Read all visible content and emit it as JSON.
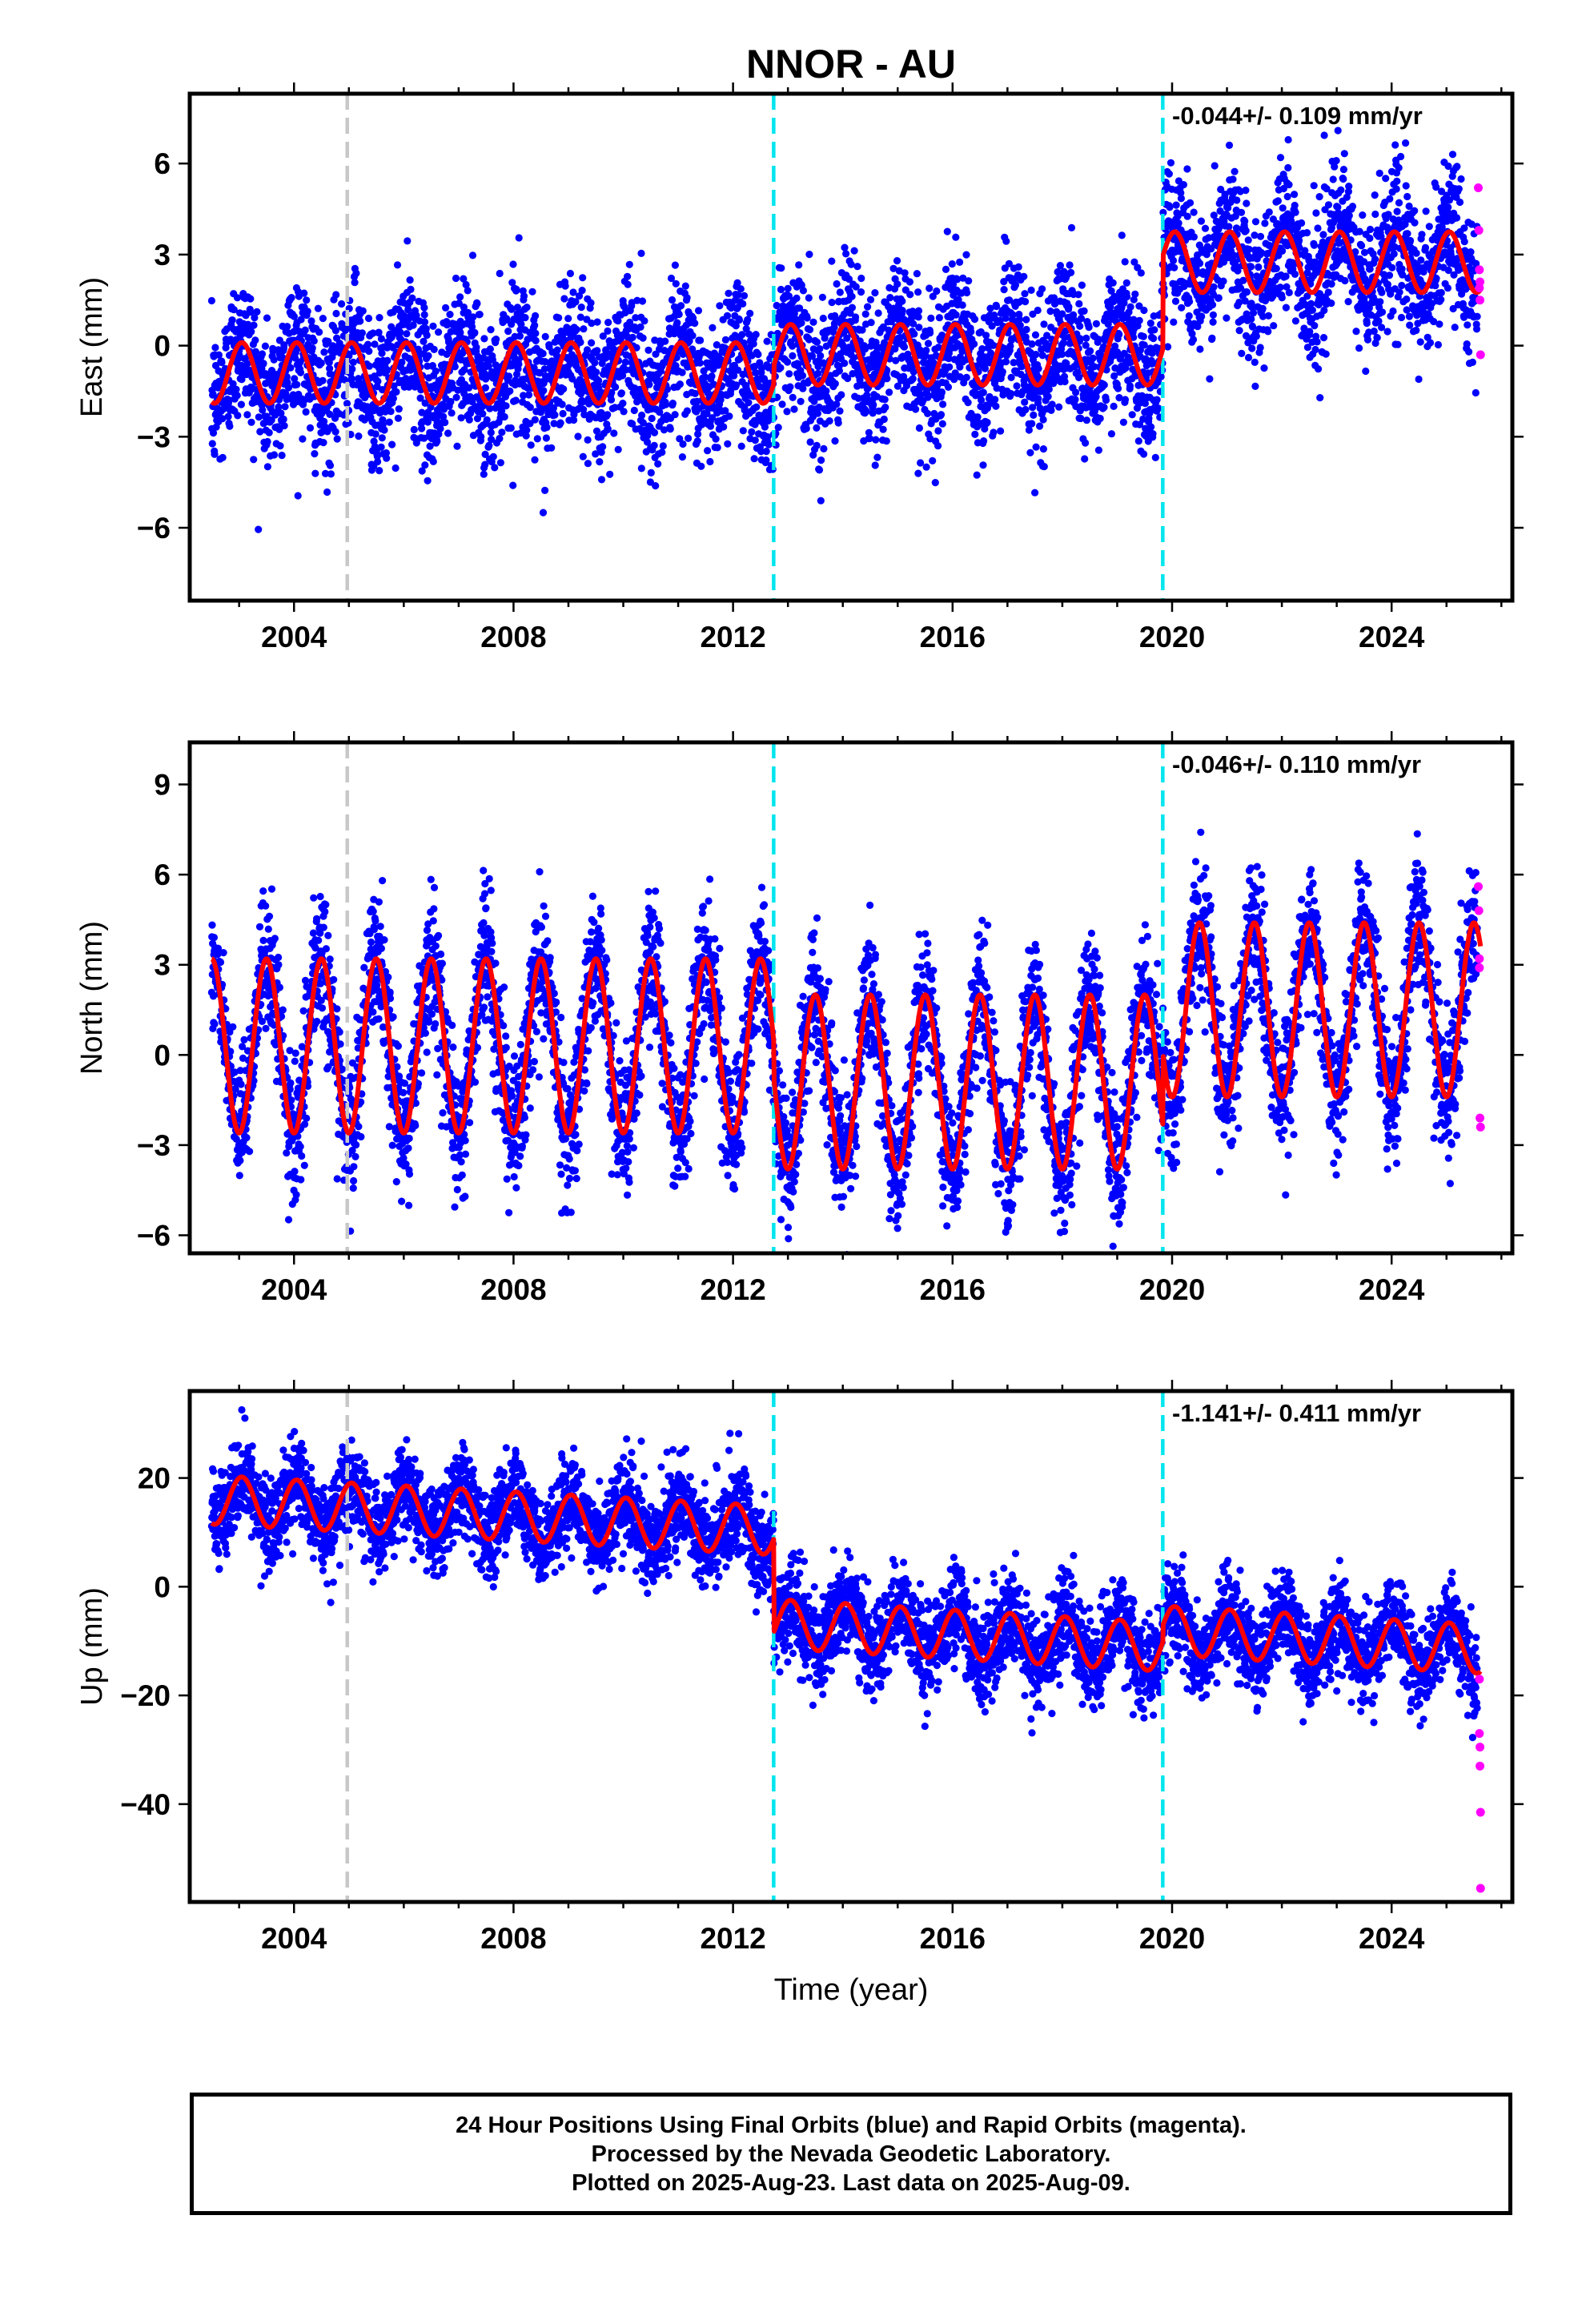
{
  "title": "NNOR - AU",
  "footer": {
    "line1": "24 Hour Positions Using Final Orbits (blue) and Rapid Orbits (magenta).",
    "line2": "Processed by the Nevada Geodetic Laboratory.",
    "line3": "Plotted on 2025-Aug-23. Last data on 2025-Aug-09."
  },
  "colors": {
    "final_orbits": "#0000ff",
    "rapid_orbits": "#ff00ff",
    "model": "#ff0000",
    "equipment_change": "#00e5ee",
    "other_event": "#c8c8c8"
  },
  "chart_data": [
    {
      "type": "scatter",
      "panel": "east",
      "ylabel": "East (mm)",
      "xlabel": "",
      "xlim": [
        2002.1,
        2026.2
      ],
      "ylim": [
        -8.4,
        8.3
      ],
      "x_ticks": [
        2004,
        2008,
        2012,
        2016,
        2020,
        2024
      ],
      "y_ticks": [
        -6,
        -3,
        0,
        3,
        6
      ],
      "y_tick_labels": [
        "−6",
        "−3",
        "0",
        "3",
        "6"
      ],
      "velocity_label": "-0.044+/- 0.109 mm/yr",
      "offsets": [
        {
          "year": 2004.97,
          "style": "gray-dashed"
        },
        {
          "year": 2012.74,
          "style": "cyan-dashed"
        },
        {
          "year": 2019.83,
          "style": "cyan-dashed"
        }
      ],
      "model": {
        "segments": [
          {
            "start": 2002.5,
            "end": 2012.74,
            "base": -0.9
          },
          {
            "start": 2012.74,
            "end": 2019.83,
            "base": -0.3
          },
          {
            "start": 2019.83,
            "end": 2025.62,
            "base": 2.75
          }
        ],
        "annual_amplitude": 1.0,
        "annual_peak_phase": 0.05
      },
      "final_orbits": {
        "noise_sd": 1.2
      },
      "rapid_orbits": [
        {
          "x": 2025.58,
          "y": 5.2
        },
        {
          "x": 2025.59,
          "y": 3.8
        },
        {
          "x": 2025.6,
          "y": 2.5
        },
        {
          "x": 2025.6,
          "y": 1.9
        },
        {
          "x": 2025.61,
          "y": 1.5
        },
        {
          "x": 2025.61,
          "y": 2.1
        },
        {
          "x": 2025.62,
          "y": -0.3
        }
      ]
    },
    {
      "type": "scatter",
      "panel": "north",
      "ylabel": "North (mm)",
      "xlabel": "",
      "xlim": [
        2002.1,
        2026.2
      ],
      "ylim": [
        -6.6,
        10.4
      ],
      "x_ticks": [
        2004,
        2008,
        2012,
        2016,
        2020,
        2024
      ],
      "y_ticks": [
        -6,
        -3,
        0,
        3,
        6,
        9
      ],
      "y_tick_labels": [
        "−6",
        "−3",
        "0",
        "3",
        "6",
        "9"
      ],
      "velocity_label": "-0.046+/- 0.110 mm/yr",
      "offsets": [
        {
          "year": 2004.97,
          "style": "gray-dashed"
        },
        {
          "year": 2012.74,
          "style": "cyan-dashed"
        },
        {
          "year": 2019.83,
          "style": "cyan-dashed"
        }
      ],
      "model": {
        "segments": [
          {
            "start": 2002.5,
            "end": 2012.74,
            "base": 0.3
          },
          {
            "start": 2012.74,
            "end": 2019.83,
            "base": -0.9
          },
          {
            "start": 2019.83,
            "end": 2025.62,
            "base": 1.5
          }
        ],
        "annual_amplitude": 2.9,
        "annual_peak_phase": 0.5
      },
      "final_orbits": {
        "noise_sd": 1.1
      },
      "rapid_orbits": [
        {
          "x": 2025.58,
          "y": 5.6
        },
        {
          "x": 2025.59,
          "y": 4.8
        },
        {
          "x": 2025.6,
          "y": 3.2
        },
        {
          "x": 2025.6,
          "y": 2.9
        },
        {
          "x": 2025.61,
          "y": -2.1
        },
        {
          "x": 2025.62,
          "y": -2.4
        }
      ]
    },
    {
      "type": "scatter",
      "panel": "up",
      "ylabel": "Up (mm)",
      "xlabel": "Time (year)",
      "xlim": [
        2002.1,
        2026.2
      ],
      "ylim": [
        -58,
        36
      ],
      "x_ticks": [
        2004,
        2008,
        2012,
        2016,
        2020,
        2024
      ],
      "y_ticks": [
        -40,
        -20,
        0,
        20
      ],
      "y_tick_labels": [
        "−40",
        "−20",
        "0",
        "20"
      ],
      "velocity_label": "-1.141+/- 0.411 mm/yr",
      "offsets": [
        {
          "year": 2004.97,
          "style": "gray-dashed"
        },
        {
          "year": 2012.74,
          "style": "cyan-dashed"
        },
        {
          "year": 2019.83,
          "style": "cyan-dashed"
        }
      ],
      "model": {
        "segments": [
          {
            "start": 2002.5,
            "end": 2012.74,
            "base": 16.0,
            "slope": -0.55
          },
          {
            "start": 2012.74,
            "end": 2019.83,
            "base": -6.8,
            "slope": -0.6
          },
          {
            "start": 2019.83,
            "end": 2025.62,
            "base": -8.0,
            "slope": -0.6
          }
        ],
        "annual_amplitude": 4.5,
        "annual_peak_phase": 0.05
      },
      "final_orbits": {
        "noise_sd": 4.2
      },
      "rapid_orbits": [
        {
          "x": 2025.6,
          "y": -17.0
        },
        {
          "x": 2025.6,
          "y": -27.0
        },
        {
          "x": 2025.61,
          "y": -29.5
        },
        {
          "x": 2025.61,
          "y": -33.0
        },
        {
          "x": 2025.62,
          "y": -41.5
        },
        {
          "x": 2025.62,
          "y": -55.5
        }
      ]
    }
  ]
}
